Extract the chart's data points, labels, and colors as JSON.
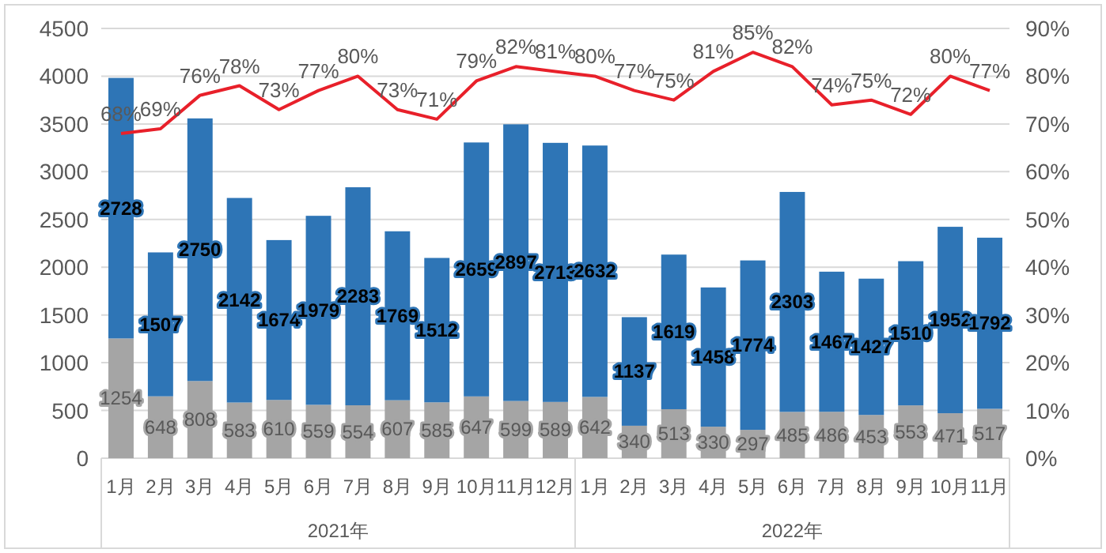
{
  "chart_data": {
    "type": "bar",
    "stacked": true,
    "categories": [
      "1月",
      "2月",
      "3月",
      "4月",
      "5月",
      "6月",
      "7月",
      "8月",
      "9月",
      "10月",
      "11月",
      "12月",
      "1月",
      "2月",
      "3月",
      "4月",
      "5月",
      "6月",
      "7月",
      "8月",
      "9月",
      "10月",
      "11月"
    ],
    "series": [
      {
        "color": "#a5a5a5",
        "values": [
          1254,
          648,
          808,
          583,
          610,
          559,
          554,
          607,
          585,
          647,
          599,
          589,
          642,
          340,
          513,
          330,
          297,
          485,
          486,
          453,
          553,
          471,
          517
        ],
        "value_labels": [
          "1254",
          "648",
          "808",
          "583",
          "610",
          "559",
          "554",
          "607",
          "585",
          "647",
          "599",
          "589",
          "642",
          "340",
          "513",
          "330",
          "297",
          "485",
          "486",
          "453",
          "553",
          "471",
          "517"
        ]
      },
      {
        "color": "#2e75b6",
        "values": [
          2728,
          1507,
          2750,
          2142,
          1674,
          1979,
          2283,
          1769,
          1512,
          2659,
          2897,
          2713,
          2632,
          1137,
          1619,
          1458,
          1774,
          2303,
          1467,
          1427,
          1510,
          1952,
          1792
        ],
        "value_labels": [
          "2728",
          "1507",
          "2750",
          "2142",
          "1674",
          "1979",
          "2283",
          "1769",
          "1512",
          "2659",
          "2897",
          "2713",
          "2632",
          "1137",
          "1619",
          "1458",
          "1774",
          "2303",
          "1467",
          "1427",
          "1510",
          "1952",
          "1792"
        ]
      },
      {
        "type": "line",
        "axis": "y2",
        "color": "#e8202a",
        "values": [
          68,
          69,
          76,
          78,
          73,
          77,
          80,
          73,
          71,
          79,
          82,
          81,
          80,
          77,
          75,
          81,
          85,
          82,
          74,
          75,
          72,
          80,
          77
        ],
        "value_labels": [
          "68%",
          "69%",
          "76%",
          "78%",
          "73%",
          "77%",
          "80%",
          "73%",
          "71%",
          "79%",
          "82%",
          "81%",
          "80%",
          "77%",
          "75%",
          "81%",
          "85%",
          "82%",
          "74%",
          "75%",
          "72%",
          "80%",
          "77%"
        ]
      }
    ],
    "ylim": [
      0,
      4500
    ],
    "yticks": [
      0,
      500,
      1000,
      1500,
      2000,
      2500,
      3000,
      3500,
      4000,
      4500
    ],
    "y2lim": [
      0,
      90
    ],
    "y2ticks": [
      {
        "value": 0,
        "label": "0%"
      },
      {
        "value": 10,
        "label": "10%"
      },
      {
        "value": 20,
        "label": "20%"
      },
      {
        "value": 30,
        "label": "30%"
      },
      {
        "value": 40,
        "label": "40%"
      },
      {
        "value": 50,
        "label": "50%"
      },
      {
        "value": 60,
        "label": "60%"
      },
      {
        "value": 70,
        "label": "70%"
      },
      {
        "value": 80,
        "label": "80%"
      },
      {
        "value": 90,
        "label": "90%"
      }
    ],
    "grid": "y",
    "annotations": [
      "2021年",
      "2022年"
    ]
  }
}
